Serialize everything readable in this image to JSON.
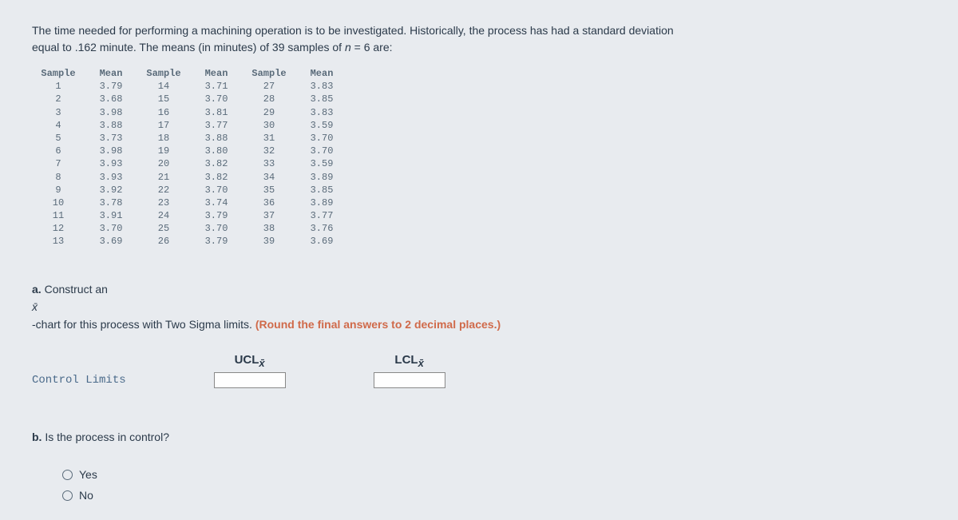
{
  "intro": {
    "line1_a": "The time needed for performing a machining operation is to be investigated. Historically, the process has had a standard deviation",
    "line2_a": "equal to .162 minute. The means (in minutes) of 39 samples of ",
    "n_label": "n",
    "line2_b": " = 6 are:"
  },
  "table": {
    "headers": [
      "Sample",
      "Mean",
      "Sample",
      "Mean",
      "Sample",
      "Mean"
    ],
    "rows": [
      [
        "1",
        "3.79",
        "14",
        "3.71",
        "27",
        "3.83"
      ],
      [
        "2",
        "3.68",
        "15",
        "3.70",
        "28",
        "3.85"
      ],
      [
        "3",
        "3.98",
        "16",
        "3.81",
        "29",
        "3.83"
      ],
      [
        "4",
        "3.88",
        "17",
        "3.77",
        "30",
        "3.59"
      ],
      [
        "5",
        "3.73",
        "18",
        "3.88",
        "31",
        "3.70"
      ],
      [
        "6",
        "3.98",
        "19",
        "3.80",
        "32",
        "3.70"
      ],
      [
        "7",
        "3.93",
        "20",
        "3.82",
        "33",
        "3.59"
      ],
      [
        "8",
        "3.93",
        "21",
        "3.82",
        "34",
        "3.89"
      ],
      [
        "9",
        "3.92",
        "22",
        "3.70",
        "35",
        "3.85"
      ],
      [
        "10",
        "3.78",
        "23",
        "3.74",
        "36",
        "3.89"
      ],
      [
        "11",
        "3.91",
        "24",
        "3.79",
        "37",
        "3.77"
      ],
      [
        "12",
        "3.70",
        "25",
        "3.70",
        "38",
        "3.76"
      ],
      [
        "13",
        "3.69",
        "26",
        "3.79",
        "39",
        "3.69"
      ]
    ],
    "header_bg": "#e8ebef",
    "text_color": "#5a6b7a",
    "font_size": 12
  },
  "part_a": {
    "label": "a.",
    "text1": " Construct an",
    "symbol": "x̄",
    "text2": "-chart for this process with Two Sigma limits. ",
    "round_note": "(Round the final answers to 2 decimal places.)"
  },
  "limits": {
    "control_label": "Control Limits",
    "ucl_label": "UCL",
    "lcl_label": "LCL",
    "ucl_value": "",
    "lcl_value": ""
  },
  "part_b": {
    "label": "b.",
    "text": " Is the process in control?",
    "yes": "Yes",
    "no": "No"
  },
  "colors": {
    "background": "#e8ebef",
    "body_text": "#2b3a4a",
    "highlight": "#d06a4a"
  }
}
